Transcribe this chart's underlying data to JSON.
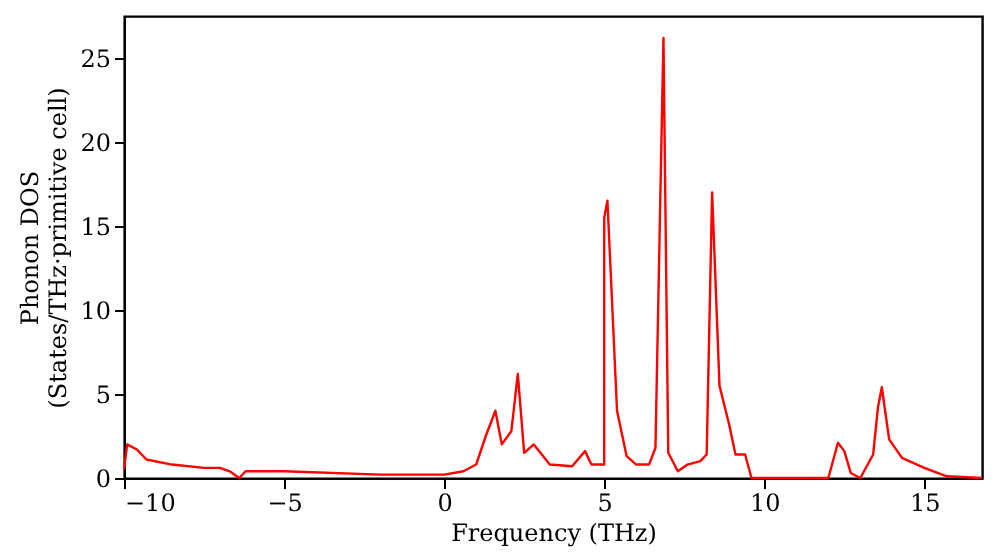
{
  "chart_data": {
    "type": "line",
    "xlabel": "Frequency (THz)",
    "ylabel": "Phonon DOS\n(States/THz·primitive cell)",
    "xlim": [
      -10,
      16.8
    ],
    "ylim": [
      0,
      27.5
    ],
    "xticks": [
      -10,
      -5,
      0,
      5,
      10,
      15
    ],
    "yticks": [
      0,
      5,
      10,
      15,
      20,
      25
    ],
    "grid": false,
    "series": [
      {
        "color": "#ff0000",
        "x": [
          -10,
          -9.9,
          -9.6,
          -9.3,
          -8.5,
          -7.5,
          -7,
          -6.7,
          -6.4,
          -6.2,
          -5,
          -2,
          0,
          0.6,
          1,
          1.3,
          1.6,
          1.8,
          2.1,
          2.3,
          2.5,
          2.8,
          3.3,
          4,
          4.4,
          4.6,
          5,
          5.0,
          5.1,
          5.4,
          5.7,
          6.0,
          6.4,
          6.6,
          6.85,
          7.0,
          7.3,
          7.6,
          8,
          8.2,
          8.37,
          8.6,
          8.9,
          9.1,
          9.4,
          9.6,
          12,
          12.3,
          12.5,
          12.7,
          13.0,
          13.4,
          13.55,
          13.67,
          13.9,
          14.3,
          15,
          15.7,
          16.8
        ],
        "values": [
          0.5,
          2.0,
          1.7,
          1.1,
          0.8,
          0.6,
          0.6,
          0.4,
          0.0,
          0.4,
          0.4,
          0.2,
          0.2,
          0.4,
          0.8,
          2.5,
          4.0,
          2.0,
          2.8,
          6.2,
          1.5,
          2.0,
          0.8,
          0.7,
          1.6,
          0.8,
          0.8,
          15.5,
          16.5,
          4,
          1.3,
          0.8,
          0.8,
          1.8,
          26.2,
          1.5,
          0.4,
          0.8,
          1.0,
          1.4,
          17,
          5.5,
          3.2,
          1.4,
          1.4,
          0,
          0,
          2.1,
          1.6,
          0.3,
          0.0,
          1.4,
          4.2,
          5.4,
          2.3,
          1.2,
          0.6,
          0.1,
          0
        ]
      }
    ]
  }
}
